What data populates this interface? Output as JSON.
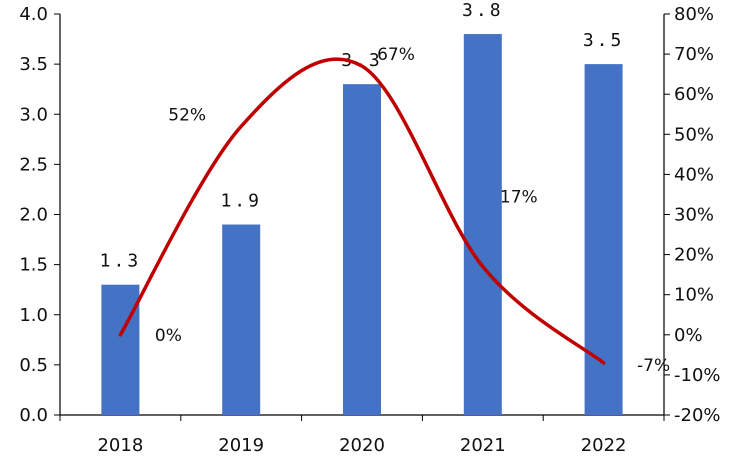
{
  "chart_data": {
    "type": "bar",
    "categories": [
      "2018",
      "2019",
      "2020",
      "2021",
      "2022"
    ],
    "series": [
      {
        "type": "bar",
        "axis": "left",
        "color": "#4472C4",
        "values": [
          1.3,
          1.9,
          3.3,
          3.8,
          3.5
        ],
        "labels": [
          "1.3",
          "1.9",
          "3.3",
          "3.8",
          "3.5"
        ]
      },
      {
        "type": "line",
        "axis": "right",
        "color": "#C00000",
        "values": [
          0,
          52,
          67,
          17,
          -7
        ],
        "labels": [
          "0%",
          "52%",
          "67%",
          "17%",
          "-7%"
        ]
      }
    ],
    "y_left": {
      "range": [
        0,
        4
      ],
      "ticks": [
        0,
        0.5,
        1,
        1.5,
        2,
        2.5,
        3,
        3.5,
        4
      ],
      "tick_labels": [
        "0.0",
        "0.5",
        "1.0",
        "1.5",
        "2.0",
        "2.5",
        "3.0",
        "3.5",
        "4.0"
      ]
    },
    "y_right": {
      "range": [
        -20,
        80
      ],
      "ticks": [
        -20,
        -10,
        0,
        10,
        20,
        30,
        40,
        50,
        60,
        70,
        80
      ],
      "tick_labels": [
        "-20%",
        "-10%",
        "0%",
        "10%",
        "20%",
        "30%",
        "40%",
        "50%",
        "60%",
        "70%",
        "80%"
      ]
    },
    "grid": false,
    "legend": "none"
  }
}
